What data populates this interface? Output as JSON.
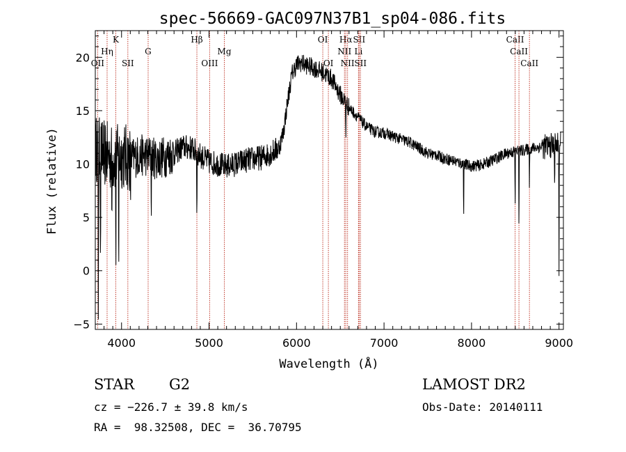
{
  "chart_data": {
    "type": "line",
    "title": "spec-56669-GAC097N37B1_sp04-086.fits",
    "xlabel": "Wavelength (Å)",
    "ylabel": "Flux (relative)",
    "xlim": [
      3700,
      9050
    ],
    "ylim": [
      -5.5,
      22.5
    ],
    "xticks": [
      4000,
      5000,
      6000,
      7000,
      8000,
      9000
    ],
    "yticks": [
      -5,
      0,
      5,
      10,
      15,
      20
    ],
    "grid": false,
    "series": [
      {
        "anchors": [
          [
            3700,
            11.5
          ],
          [
            3800,
            11
          ],
          [
            3900,
            10.5
          ],
          [
            4000,
            10.8
          ],
          [
            4100,
            10.5
          ],
          [
            4200,
            10.8
          ],
          [
            4300,
            10.8
          ],
          [
            4400,
            10.5
          ],
          [
            4500,
            10.7
          ],
          [
            4600,
            11.0
          ],
          [
            4700,
            11.6
          ],
          [
            4800,
            11.5
          ],
          [
            4900,
            10.8
          ],
          [
            5000,
            10.2
          ],
          [
            5100,
            10.0
          ],
          [
            5200,
            9.8
          ],
          [
            5300,
            10.0
          ],
          [
            5400,
            10.3
          ],
          [
            5500,
            10.5
          ],
          [
            5600,
            10.6
          ],
          [
            5700,
            11.0
          ],
          [
            5800,
            11.5
          ],
          [
            5850,
            13.0
          ],
          [
            5900,
            16.0
          ],
          [
            5950,
            18.5
          ],
          [
            6000,
            19.3
          ],
          [
            6050,
            19.5
          ],
          [
            6100,
            19.3
          ],
          [
            6200,
            19.0
          ],
          [
            6300,
            18.6
          ],
          [
            6400,
            18.0
          ],
          [
            6500,
            16.5
          ],
          [
            6600,
            15.3
          ],
          [
            6700,
            14.4
          ],
          [
            6800,
            13.5
          ],
          [
            6900,
            13.0
          ],
          [
            7000,
            12.9
          ],
          [
            7100,
            12.6
          ],
          [
            7200,
            12.3
          ],
          [
            7300,
            12.0
          ],
          [
            7400,
            11.5
          ],
          [
            7500,
            11.0
          ],
          [
            7600,
            10.8
          ],
          [
            7700,
            10.5
          ],
          [
            7800,
            10.3
          ],
          [
            7900,
            10.0
          ],
          [
            8000,
            9.8
          ],
          [
            8100,
            9.9
          ],
          [
            8200,
            10.2
          ],
          [
            8300,
            10.6
          ],
          [
            8400,
            11.0
          ],
          [
            8500,
            11.2
          ],
          [
            8600,
            11.3
          ],
          [
            8700,
            11.5
          ],
          [
            8800,
            11.6
          ],
          [
            8900,
            11.7
          ],
          [
            9000,
            11.8
          ]
        ],
        "dips": [
          [
            3735,
            -3.5
          ],
          [
            3760,
            0.5
          ],
          [
            3805,
            4.5
          ],
          [
            3890,
            3.0
          ],
          [
            3935,
            -1.0
          ],
          [
            3968,
            -0.8
          ],
          [
            4102,
            5.0
          ],
          [
            4340,
            4.5
          ],
          [
            4861,
            3.5
          ],
          [
            5170,
            7.5
          ],
          [
            6563,
            12.0
          ],
          [
            7593,
            11.5
          ],
          [
            7910,
            4.5
          ],
          [
            8498,
            5.0
          ],
          [
            8542,
            2.5
          ],
          [
            8662,
            7.0
          ],
          [
            8950,
            7.5
          ],
          [
            9000,
            0.0
          ]
        ]
      }
    ],
    "lines": [
      {
        "name": "Hη",
        "wavelength": 3835,
        "row": 2
      },
      {
        "name": "OII",
        "wavelength": 3727,
        "row": 3
      },
      {
        "name": "K",
        "wavelength": 3934,
        "row": 1
      },
      {
        "name": "SII",
        "wavelength": 4072,
        "row": 3
      },
      {
        "name": "G",
        "wavelength": 4304,
        "row": 2
      },
      {
        "name": "Hβ",
        "wavelength": 4861,
        "row": 1
      },
      {
        "name": "OIII",
        "wavelength": 5007,
        "row": 3
      },
      {
        "name": "Mg",
        "wavelength": 5175,
        "row": 2
      },
      {
        "name": "OI",
        "wavelength": 6300,
        "row": 1
      },
      {
        "name": "OI",
        "wavelength": 6364,
        "row": 3
      },
      {
        "name": "Hα",
        "wavelength": 6563,
        "row": 1
      },
      {
        "name": "NII",
        "wavelength": 6548,
        "row": 2
      },
      {
        "name": "NII",
        "wavelength": 6583,
        "row": 3
      },
      {
        "name": "SII",
        "wavelength": 6716,
        "row": 1
      },
      {
        "name": "Li",
        "wavelength": 6708,
        "row": 2
      },
      {
        "name": "SII",
        "wavelength": 6731,
        "row": 3
      },
      {
        "name": "CaII",
        "wavelength": 8498,
        "row": 1
      },
      {
        "name": "CaII",
        "wavelength": 8542,
        "row": 2
      },
      {
        "name": "CaII",
        "wavelength": 8662,
        "row": 3
      }
    ]
  },
  "footer": {
    "class_label": "STAR",
    "subclass": "G2",
    "survey": "LAMOST DR2",
    "cz": "cz = −226.7 ± 39.8 km/s",
    "obs_date": "Obs-Date: 20140111",
    "coords": "RA =  98.32508, DEC =  36.70795"
  },
  "colors": {
    "spectrum": "#000000",
    "line_markers": "#c0392b"
  }
}
